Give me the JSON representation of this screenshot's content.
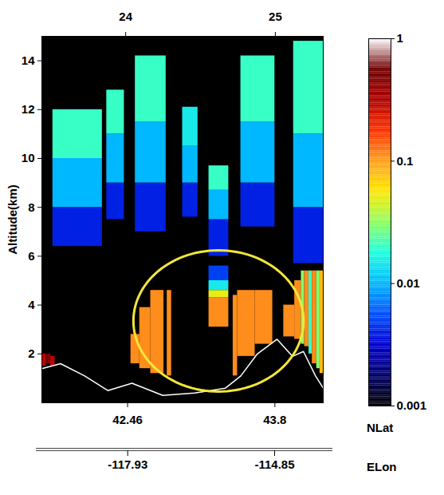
{
  "chart_data": {
    "type": "heatmap",
    "ylabel": "Altitude(km)",
    "xlabel": "NLat",
    "xlim": [
      41.68,
      44.24
    ],
    "xticks": [
      42.46,
      43.8
    ],
    "x2lim": [
      23.44,
      25.32
    ],
    "x2ticks": [
      24,
      25
    ],
    "x3label": "ELon",
    "x3lim": [
      -119.73,
      -113.83
    ],
    "x3ticks": [
      -117.93,
      -114.85
    ],
    "ylim": [
      0,
      15
    ],
    "yticks": [
      2,
      4,
      6,
      8,
      10,
      12,
      14
    ],
    "log": true,
    "colorbar": {
      "range": [
        0.001,
        1
      ],
      "ticks": [
        0.001,
        0.01,
        0.1,
        1
      ],
      "colors": [
        "#000000",
        "#00006a",
        "#0000d0",
        "#0050ff",
        "#00b8ff",
        "#20ffe0",
        "#90ff60",
        "#ffe800",
        "#ffa020",
        "#ff3000",
        "#b00000",
        "#700000",
        "#ffffff"
      ]
    },
    "cells": [
      [
        41.78,
        42.23,
        6.4,
        8.0,
        0.004
      ],
      [
        41.78,
        42.23,
        8.0,
        10.0,
        0.01
      ],
      [
        41.78,
        42.23,
        10.0,
        12.0,
        0.02
      ],
      [
        42.27,
        42.43,
        7.5,
        9.0,
        0.004
      ],
      [
        42.27,
        42.43,
        9.0,
        11.0,
        0.01
      ],
      [
        42.27,
        42.43,
        11.0,
        12.8,
        0.02
      ],
      [
        42.53,
        42.81,
        7.0,
        9.0,
        0.004
      ],
      [
        42.53,
        42.81,
        9.0,
        11.5,
        0.01
      ],
      [
        42.53,
        42.81,
        11.5,
        14.2,
        0.02
      ],
      [
        42.96,
        43.1,
        7.6,
        9.0,
        0.004
      ],
      [
        42.96,
        43.1,
        9.0,
        10.5,
        0.01
      ],
      [
        42.96,
        43.1,
        10.5,
        12.1,
        0.015
      ],
      [
        43.2,
        43.38,
        6.0,
        7.5,
        0.004
      ],
      [
        43.2,
        43.38,
        7.5,
        8.7,
        0.01
      ],
      [
        43.2,
        43.38,
        8.7,
        9.7,
        0.02
      ],
      [
        43.49,
        43.8,
        7.2,
        9.0,
        0.004
      ],
      [
        43.49,
        43.8,
        9.0,
        11.5,
        0.01
      ],
      [
        43.49,
        43.8,
        11.5,
        14.2,
        0.02
      ],
      [
        43.97,
        44.24,
        5.7,
        8.0,
        0.004
      ],
      [
        43.97,
        44.24,
        8.0,
        11.0,
        0.01
      ],
      [
        43.97,
        44.24,
        11.0,
        14.8,
        0.02
      ],
      [
        41.68,
        41.72,
        1.5,
        2.0,
        0.3
      ],
      [
        41.72,
        41.76,
        1.6,
        2.0,
        0.5
      ],
      [
        41.76,
        41.8,
        1.5,
        1.9,
        0.3
      ],
      [
        42.49,
        42.57,
        1.6,
        2.8,
        0.11
      ],
      [
        42.57,
        42.67,
        1.4,
        3.9,
        0.11
      ],
      [
        42.67,
        42.79,
        1.2,
        4.6,
        0.11
      ],
      [
        42.82,
        42.86,
        1.1,
        4.6,
        0.11
      ],
      [
        43.2,
        43.38,
        3.1,
        4.3,
        0.11
      ],
      [
        43.2,
        43.38,
        4.3,
        4.6,
        0.05
      ],
      [
        43.2,
        43.38,
        4.6,
        5.0,
        0.015
      ],
      [
        43.2,
        43.38,
        5.0,
        5.6,
        0.005
      ],
      [
        43.42,
        43.46,
        1.1,
        4.4,
        0.11
      ],
      [
        43.46,
        43.62,
        1.9,
        4.6,
        0.11
      ],
      [
        43.62,
        43.78,
        2.4,
        4.6,
        0.11
      ],
      [
        43.88,
        43.98,
        2.7,
        4.0,
        0.11
      ],
      [
        43.98,
        44.04,
        2.6,
        5.0,
        0.11
      ],
      [
        44.04,
        44.07,
        2.4,
        5.4,
        0.03
      ],
      [
        44.07,
        44.11,
        2.3,
        5.4,
        0.11
      ],
      [
        44.11,
        44.14,
        2.0,
        5.4,
        0.02
      ],
      [
        44.14,
        44.18,
        1.6,
        5.4,
        0.11
      ],
      [
        44.18,
        44.21,
        1.4,
        5.4,
        0.03
      ],
      [
        44.21,
        44.24,
        1.2,
        5.4,
        0.08
      ]
    ],
    "surface": {
      "x": [
        41.68,
        41.85,
        42.07,
        42.28,
        42.5,
        42.78,
        43.07,
        43.35,
        43.49,
        43.64,
        43.82,
        43.96,
        44.06,
        44.17,
        44.24
      ],
      "y": [
        1.4,
        1.6,
        1.1,
        0.5,
        0.8,
        0.3,
        0.4,
        0.6,
        1.1,
        2.0,
        2.6,
        1.9,
        2.1,
        1.1,
        0.6
      ],
      "color": "#ffffff"
    },
    "highlight": {
      "x": 43.287,
      "y": 3.35,
      "rx": 0.774,
      "ry": 2.89,
      "color": "#f2e63a"
    }
  }
}
